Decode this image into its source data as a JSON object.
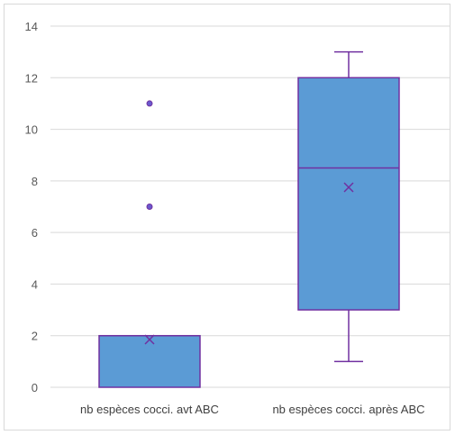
{
  "chart_data": {
    "type": "box",
    "categories": [
      "nb espèces cocci. avt ABC",
      "nb espèces cocci. après ABC"
    ],
    "ylim": [
      0,
      14
    ],
    "y_ticks": [
      "0",
      "2",
      "4",
      "6",
      "8",
      "10",
      "12",
      "14"
    ],
    "grid": true,
    "boxes": [
      {
        "name": "nb espèces cocci. avt ABC",
        "min": 0,
        "q1": 0,
        "median": 2,
        "q3": 2,
        "max": 2,
        "mean": 1.85,
        "outliers": [
          7,
          11
        ]
      },
      {
        "name": "nb espèces cocci. après ABC",
        "min": 1,
        "q1": 3,
        "median": 8.5,
        "q3": 12,
        "max": 13,
        "mean": 7.75,
        "outliers": []
      }
    ],
    "colors": {
      "box_fill": "#5b9bd5",
      "box_stroke": "#7030a0",
      "grid": "#d9d9d9"
    }
  }
}
